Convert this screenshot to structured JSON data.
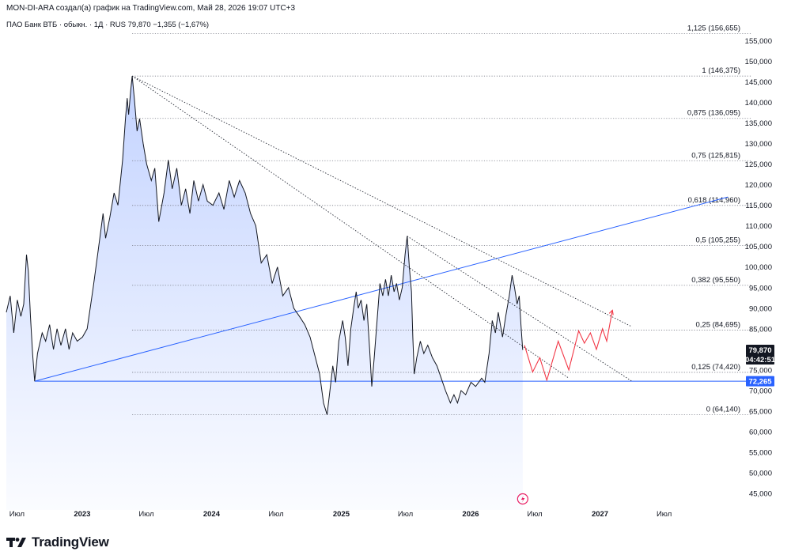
{
  "header": "MON-DI-ARA создал(а) график на TradingView.com, Май 28, 2026 19:07 UTC+3",
  "legend": "ПАО Банк ВТБ · обыкн. · 1Д · RUS  79,870  −1,355 (−1,67%)",
  "brand": "TradingView",
  "colors": {
    "price_line": "#131722",
    "area_fill": "#2962ff",
    "trendline": "#2962ff",
    "forecast": "#f23645",
    "fib": "#787b86",
    "badge_price": "#131722",
    "badge_level": "#2962ff"
  },
  "chart_data": {
    "type": "line",
    "ylim": [
      41000,
      161000
    ],
    "x_tick_labels": [
      "Июл",
      "2023",
      "Июл",
      "2024",
      "Июл",
      "2025",
      "Июл",
      "2026",
      "Июл",
      "2027",
      "Июл"
    ],
    "y_tick_labels": [
      "155,000",
      "150,000",
      "145,000",
      "140,000",
      "135,000",
      "130,000",
      "125,000",
      "120,000",
      "115,000",
      "110,000",
      "105,000",
      "100,000",
      "95,000",
      "90,000",
      "85,000",
      "80,000",
      "75,000",
      "70,000",
      "65,000",
      "60,000",
      "55,000",
      "50,000",
      "45,000"
    ],
    "y_tick_values": [
      155000,
      150000,
      145000,
      140000,
      135000,
      130000,
      125000,
      120000,
      115000,
      110000,
      105000,
      100000,
      95000,
      90000,
      85000,
      80000,
      75000,
      70000,
      65000,
      60000,
      55000,
      50000,
      45000
    ],
    "price_series": [
      [
        "2022-06-01",
        89000
      ],
      [
        "2022-06-12",
        93000
      ],
      [
        "2022-06-22",
        84000
      ],
      [
        "2022-07-02",
        92000
      ],
      [
        "2022-07-12",
        88000
      ],
      [
        "2022-07-20",
        91000
      ],
      [
        "2022-07-28",
        103000
      ],
      [
        "2022-08-02",
        99000
      ],
      [
        "2022-08-08",
        88000
      ],
      [
        "2022-08-14",
        79000
      ],
      [
        "2022-08-20",
        72265
      ],
      [
        "2022-08-28",
        79000
      ],
      [
        "2022-09-10",
        84000
      ],
      [
        "2022-09-20",
        82000
      ],
      [
        "2022-10-01",
        86000
      ],
      [
        "2022-10-12",
        80000
      ],
      [
        "2022-10-22",
        85000
      ],
      [
        "2022-11-02",
        81000
      ],
      [
        "2022-11-15",
        85000
      ],
      [
        "2022-11-25",
        80000
      ],
      [
        "2022-12-05",
        84000
      ],
      [
        "2022-12-18",
        82000
      ],
      [
        "2023-01-02",
        83000
      ],
      [
        "2023-01-15",
        85000
      ],
      [
        "2023-02-01",
        95000
      ],
      [
        "2023-02-15",
        104000
      ],
      [
        "2023-03-01",
        113000
      ],
      [
        "2023-03-08",
        107000
      ],
      [
        "2023-03-20",
        112000
      ],
      [
        "2023-04-01",
        118000
      ],
      [
        "2023-04-12",
        115000
      ],
      [
        "2023-04-25",
        126000
      ],
      [
        "2023-05-03",
        136000
      ],
      [
        "2023-05-08",
        141000
      ],
      [
        "2023-05-12",
        137000
      ],
      [
        "2023-05-18",
        143000
      ],
      [
        "2023-05-22",
        146375
      ],
      [
        "2023-05-28",
        141000
      ],
      [
        "2023-06-05",
        133000
      ],
      [
        "2023-06-12",
        136000
      ],
      [
        "2023-06-22",
        130000
      ],
      [
        "2023-07-02",
        125000
      ],
      [
        "2023-07-15",
        121000
      ],
      [
        "2023-07-25",
        124000
      ],
      [
        "2023-08-05",
        111000
      ],
      [
        "2023-08-20",
        118000
      ],
      [
        "2023-09-01",
        126000
      ],
      [
        "2023-09-12",
        119000
      ],
      [
        "2023-09-25",
        124000
      ],
      [
        "2023-10-08",
        115000
      ],
      [
        "2023-10-20",
        119000
      ],
      [
        "2023-11-01",
        113000
      ],
      [
        "2023-11-12",
        121000
      ],
      [
        "2023-11-25",
        116000
      ],
      [
        "2023-12-08",
        120000
      ],
      [
        "2023-12-20",
        116000
      ],
      [
        "2024-01-05",
        115000
      ],
      [
        "2024-01-22",
        118000
      ],
      [
        "2024-02-05",
        114000
      ],
      [
        "2024-02-20",
        121000
      ],
      [
        "2024-03-05",
        117000
      ],
      [
        "2024-03-20",
        121000
      ],
      [
        "2024-04-05",
        118000
      ],
      [
        "2024-04-20",
        113000
      ],
      [
        "2024-05-05",
        110000
      ],
      [
        "2024-05-20",
        101000
      ],
      [
        "2024-06-05",
        103000
      ],
      [
        "2024-06-20",
        96000
      ],
      [
        "2024-07-05",
        100000
      ],
      [
        "2024-07-20",
        93000
      ],
      [
        "2024-08-05",
        95000
      ],
      [
        "2024-08-20",
        90000
      ],
      [
        "2024-09-05",
        88000
      ],
      [
        "2024-09-20",
        86000
      ],
      [
        "2024-10-05",
        83000
      ],
      [
        "2024-10-20",
        78000
      ],
      [
        "2024-11-01",
        74000
      ],
      [
        "2024-11-12",
        67000
      ],
      [
        "2024-11-22",
        64140
      ],
      [
        "2024-11-30",
        70000
      ],
      [
        "2024-12-08",
        76000
      ],
      [
        "2024-12-16",
        72000
      ],
      [
        "2024-12-25",
        82000
      ],
      [
        "2025-01-05",
        87000
      ],
      [
        "2025-01-12",
        83000
      ],
      [
        "2025-01-20",
        76000
      ],
      [
        "2025-01-28",
        85000
      ],
      [
        "2025-02-05",
        90000
      ],
      [
        "2025-02-12",
        94000
      ],
      [
        "2025-02-18",
        90000
      ],
      [
        "2025-02-26",
        92000
      ],
      [
        "2025-03-06",
        87000
      ],
      [
        "2025-03-14",
        91000
      ],
      [
        "2025-03-22",
        80000
      ],
      [
        "2025-03-28",
        71000
      ],
      [
        "2025-04-04",
        78000
      ],
      [
        "2025-04-12",
        87000
      ],
      [
        "2025-04-20",
        96000
      ],
      [
        "2025-04-28",
        93000
      ],
      [
        "2025-05-06",
        97000
      ],
      [
        "2025-05-14",
        93000
      ],
      [
        "2025-05-22",
        98000
      ],
      [
        "2025-05-30",
        94000
      ],
      [
        "2025-06-06",
        96000
      ],
      [
        "2025-06-14",
        92000
      ],
      [
        "2025-06-22",
        95000
      ],
      [
        "2025-06-30",
        103000
      ],
      [
        "2025-07-06",
        107500
      ],
      [
        "2025-07-12",
        100000
      ],
      [
        "2025-07-18",
        94000
      ],
      [
        "2025-07-22",
        83000
      ],
      [
        "2025-07-26",
        74000
      ],
      [
        "2025-08-02",
        78000
      ],
      [
        "2025-08-12",
        82000
      ],
      [
        "2025-08-22",
        79000
      ],
      [
        "2025-09-02",
        81000
      ],
      [
        "2025-09-15",
        78000
      ],
      [
        "2025-09-28",
        76000
      ],
      [
        "2025-10-10",
        73000
      ],
      [
        "2025-10-22",
        70000
      ],
      [
        "2025-11-05",
        67000
      ],
      [
        "2025-11-15",
        69000
      ],
      [
        "2025-11-25",
        67000
      ],
      [
        "2025-12-05",
        70000
      ],
      [
        "2025-12-18",
        69000
      ],
      [
        "2026-01-02",
        72000
      ],
      [
        "2026-01-15",
        71000
      ],
      [
        "2026-02-01",
        73000
      ],
      [
        "2026-02-10",
        72000
      ],
      [
        "2026-02-22",
        79000
      ],
      [
        "2026-03-03",
        87000
      ],
      [
        "2026-03-12",
        84000
      ],
      [
        "2026-03-20",
        89000
      ],
      [
        "2026-04-01",
        83000
      ],
      [
        "2026-04-10",
        88000
      ],
      [
        "2026-04-20",
        93000
      ],
      [
        "2026-04-28",
        98000
      ],
      [
        "2026-05-05",
        95000
      ],
      [
        "2026-05-12",
        91000
      ],
      [
        "2026-05-18",
        93000
      ],
      [
        "2026-05-23",
        86000
      ],
      [
        "2026-05-28",
        79870
      ]
    ],
    "price_labels": [
      {
        "text": "79,870",
        "price": 79870,
        "style": "dark"
      },
      {
        "text": "04:42:51",
        "price": 78000,
        "style": "dark"
      },
      {
        "text": "72,265",
        "price": 72265,
        "style": "blue"
      }
    ],
    "fib_levels": [
      {
        "label": "1,125 (156,655)",
        "price": 156655,
        "x_start": "2023-05-22"
      },
      {
        "label": "1 (146,375)",
        "price": 146375,
        "x_start": "2023-05-22"
      },
      {
        "label": "0,875 (136,095)",
        "price": 136095,
        "x_start": "2023-05-22"
      },
      {
        "label": "0,75 (125,815)",
        "price": 125815,
        "x_start": "2023-05-22"
      },
      {
        "label": "0,618 (114,960)",
        "price": 114960,
        "x_start": "2023-05-22"
      },
      {
        "label": "0,5 (105,255)",
        "price": 105255,
        "x_start": "2023-05-22"
      },
      {
        "label": "0,382 (95,550)",
        "price": 95550,
        "x_start": "2023-05-22"
      },
      {
        "label": "0,25 (84,695)",
        "price": 84695,
        "x_start": "2023-05-22"
      },
      {
        "label": "0,125 (74,420)",
        "price": 74420,
        "x_start": "2023-05-22"
      },
      {
        "label": "0 (64,140)",
        "price": 64140,
        "x_start": "2023-05-22"
      }
    ],
    "horizontal_line": {
      "price": 72265,
      "x_start": "2022-08-20"
    },
    "trendlines": [
      {
        "style": "solid",
        "from": [
          "2022-08-20",
          72265
        ],
        "to": [
          "2027-12-28",
          117000
        ]
      },
      {
        "style": "dotted",
        "from": [
          "2023-05-22",
          146375
        ],
        "to": [
          "2027-04-01",
          85500
        ]
      },
      {
        "style": "dotted",
        "from": [
          "2023-05-22",
          146375
        ],
        "to": [
          "2026-10-05",
          73000
        ]
      },
      {
        "style": "dotted",
        "from": [
          "2025-07-06",
          107500
        ],
        "to": [
          "2027-04-01",
          72265
        ]
      }
    ],
    "forecast_path": [
      [
        "2026-06-02",
        81000
      ],
      [
        "2026-06-25",
        74500
      ],
      [
        "2026-07-15",
        78000
      ],
      [
        "2026-08-04",
        72500
      ],
      [
        "2026-09-05",
        82000
      ],
      [
        "2026-10-05",
        75000
      ],
      [
        "2026-11-02",
        84500
      ],
      [
        "2026-11-18",
        81500
      ],
      [
        "2026-12-05",
        84000
      ],
      [
        "2026-12-22",
        80000
      ],
      [
        "2027-01-08",
        85000
      ],
      [
        "2027-01-20",
        82000
      ],
      [
        "2027-02-05",
        89500
      ]
    ]
  }
}
